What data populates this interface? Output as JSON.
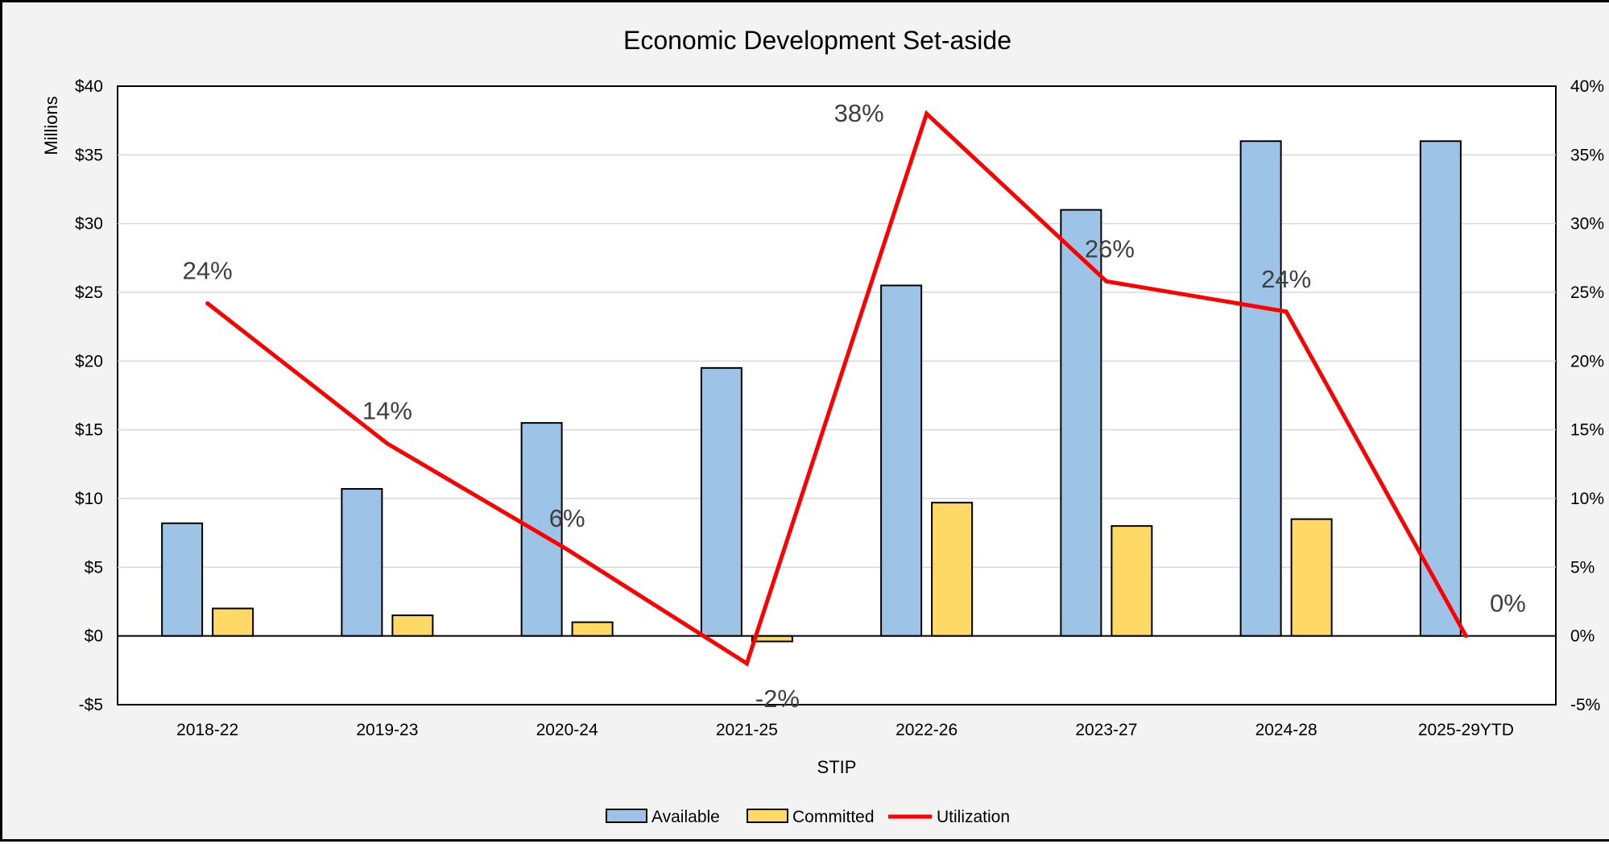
{
  "chart_data": {
    "type": "bar",
    "title": "Economic Development Set-aside",
    "xlabel": "STIP",
    "ylabel": "Millions",
    "categories": [
      "2018-22",
      "2019-23",
      "2020-24",
      "2021-25",
      "2022-26",
      "2023-27",
      "2024-28",
      "2025-29YTD"
    ],
    "ylim": [
      -5,
      40
    ],
    "y_ticks": [
      -5,
      0,
      5,
      10,
      15,
      20,
      25,
      30,
      35,
      40
    ],
    "y_tick_labels": [
      "-$5",
      "$0",
      "$5",
      "$10",
      "$15",
      "$20",
      "$25",
      "$30",
      "$35",
      "$40"
    ],
    "y2lim": [
      -5,
      40
    ],
    "y2_ticks": [
      -5,
      0,
      5,
      10,
      15,
      20,
      25,
      30,
      35,
      40
    ],
    "y2_tick_labels": [
      "-5%",
      "0%",
      "5%",
      "10%",
      "15%",
      "20%",
      "25%",
      "30%",
      "35%",
      "40%"
    ],
    "grid": true,
    "legend_position": "bottom",
    "series": [
      {
        "name": "Available",
        "type": "bar",
        "axis": "left",
        "color": "#9dc3e6",
        "values": [
          8.2,
          10.7,
          15.5,
          19.5,
          25.5,
          31.0,
          36.0,
          36.0
        ]
      },
      {
        "name": "Committed",
        "type": "bar",
        "axis": "left",
        "color": "#ffd966",
        "values": [
          2.0,
          1.5,
          1.0,
          -0.4,
          9.7,
          8.0,
          8.5,
          0
        ]
      },
      {
        "name": "Utilization",
        "type": "line",
        "axis": "right",
        "color": "#ff0000",
        "values": [
          24.2,
          14.0,
          6.3,
          -2.0,
          38.0,
          25.8,
          23.6,
          0
        ],
        "data_labels": [
          "24%",
          "14%",
          "6%",
          "-2%",
          "38%",
          "26%",
          "24%",
          "0%"
        ]
      }
    ]
  }
}
